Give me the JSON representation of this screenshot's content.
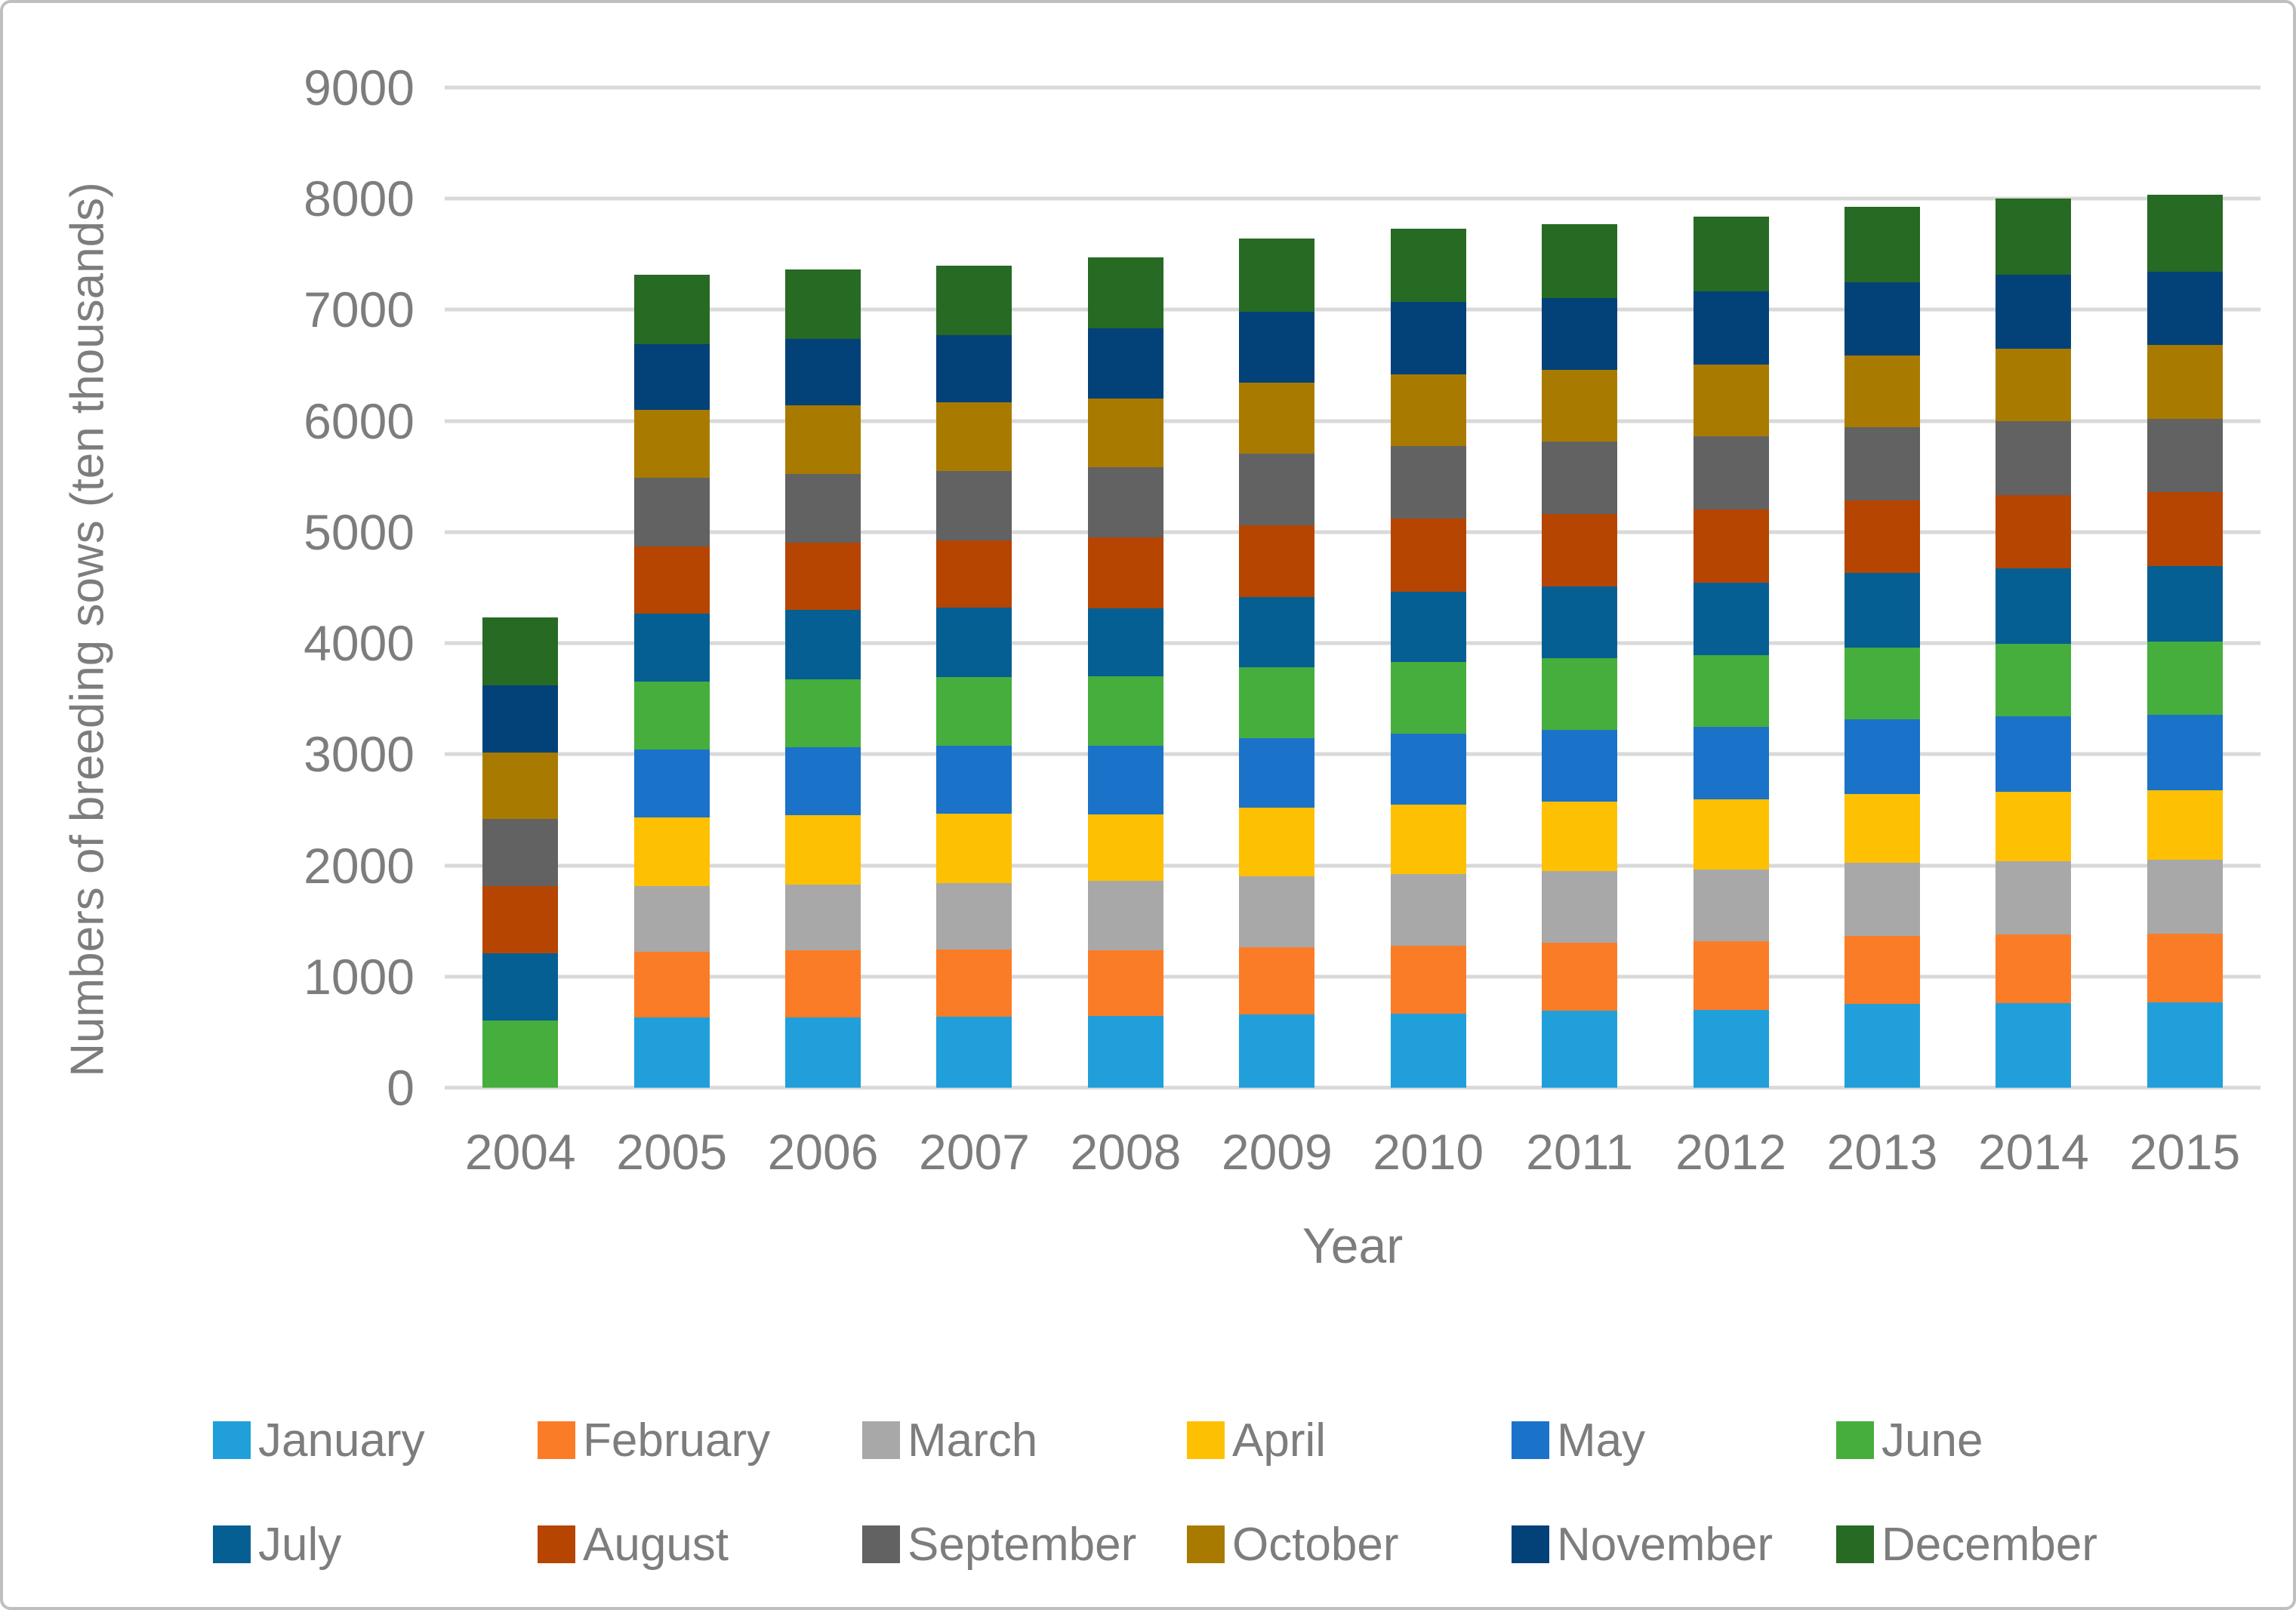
{
  "figure": {
    "border_color": "#BFBFBF",
    "background": "#FFFFFF",
    "text_color": "#7D7D7D",
    "gridline_color": "#D9D9D9"
  },
  "chart_data": {
    "type": "bar",
    "stacked": true,
    "title": "",
    "xlabel": "Year",
    "ylabel": "Numbers of breeding sows (ten thousands)",
    "ylim": [
      0,
      9000
    ],
    "ytick_step": 1000,
    "yticks": [
      0,
      1000,
      2000,
      3000,
      4000,
      5000,
      6000,
      7000,
      8000,
      9000
    ],
    "grid": true,
    "legend_position": "bottom",
    "legend_rows": 2,
    "categories": [
      "2004",
      "2005",
      "2006",
      "2007",
      "2008",
      "2009",
      "2010",
      "2011",
      "2012",
      "2013",
      "2014",
      "2015"
    ],
    "series": [
      {
        "name": "January",
        "color": "#219FDA",
        "values": [
          0,
          631,
          635,
          639,
          643,
          658,
          666,
          694,
          700,
          755,
          762,
          765
        ]
      },
      {
        "name": "February",
        "color": "#FB7C27",
        "values": [
          0,
          595,
          599,
          602,
          593,
          606,
          613,
          610,
          615,
          610,
          615,
          618
        ]
      },
      {
        "name": "March",
        "color": "#A8A8A8",
        "values": [
          0,
          591,
          595,
          598,
          622,
          636,
          644,
          646,
          651,
          657,
          663,
          666
        ]
      },
      {
        "name": "April",
        "color": "#FEC002",
        "values": [
          0,
          617,
          621,
          624,
          604,
          618,
          625,
          622,
          627,
          621,
          626,
          629
        ]
      },
      {
        "name": "May",
        "color": "#1B72C9",
        "values": [
          0,
          609,
          613,
          616,
          616,
          630,
          637,
          646,
          651,
          669,
          675,
          678
        ]
      },
      {
        "name": "June",
        "color": "#45AE3C",
        "values": [
          607,
          611,
          615,
          618,
          622,
          636,
          644,
          644,
          649,
          650,
          656,
          659
        ]
      },
      {
        "name": "July",
        "color": "#055F93",
        "values": [
          603,
          615,
          619,
          622,
          616,
          630,
          637,
          646,
          651,
          668,
          674,
          677
        ]
      },
      {
        "name": "August",
        "color": "#B54501",
        "values": [
          607,
          602,
          606,
          609,
          633,
          647,
          655,
          653,
          658,
          656,
          662,
          665
        ]
      },
      {
        "name": "September",
        "color": "#626262",
        "values": [
          604,
          617,
          621,
          624,
          634,
          648,
          656,
          654,
          659,
          656,
          662,
          665
        ]
      },
      {
        "name": "October",
        "color": "#A87B00",
        "values": [
          598,
          612,
          616,
          619,
          622,
          636,
          644,
          644,
          649,
          650,
          656,
          659
        ]
      },
      {
        "name": "November",
        "color": "#034179",
        "values": [
          604,
          592,
          596,
          599,
          627,
          641,
          649,
          649,
          654,
          656,
          662,
          665
        ]
      },
      {
        "name": "December",
        "color": "#266A23",
        "values": [
          607,
          621,
          625,
          629,
          640,
          654,
          662,
          666,
          672,
          680,
          686,
          689
        ]
      }
    ],
    "bar_totals": [
      4230,
      7313,
      7361,
      7399,
      7472,
      7640,
      7732,
      7774,
      7836,
      7928,
      7999,
      8035
    ]
  }
}
